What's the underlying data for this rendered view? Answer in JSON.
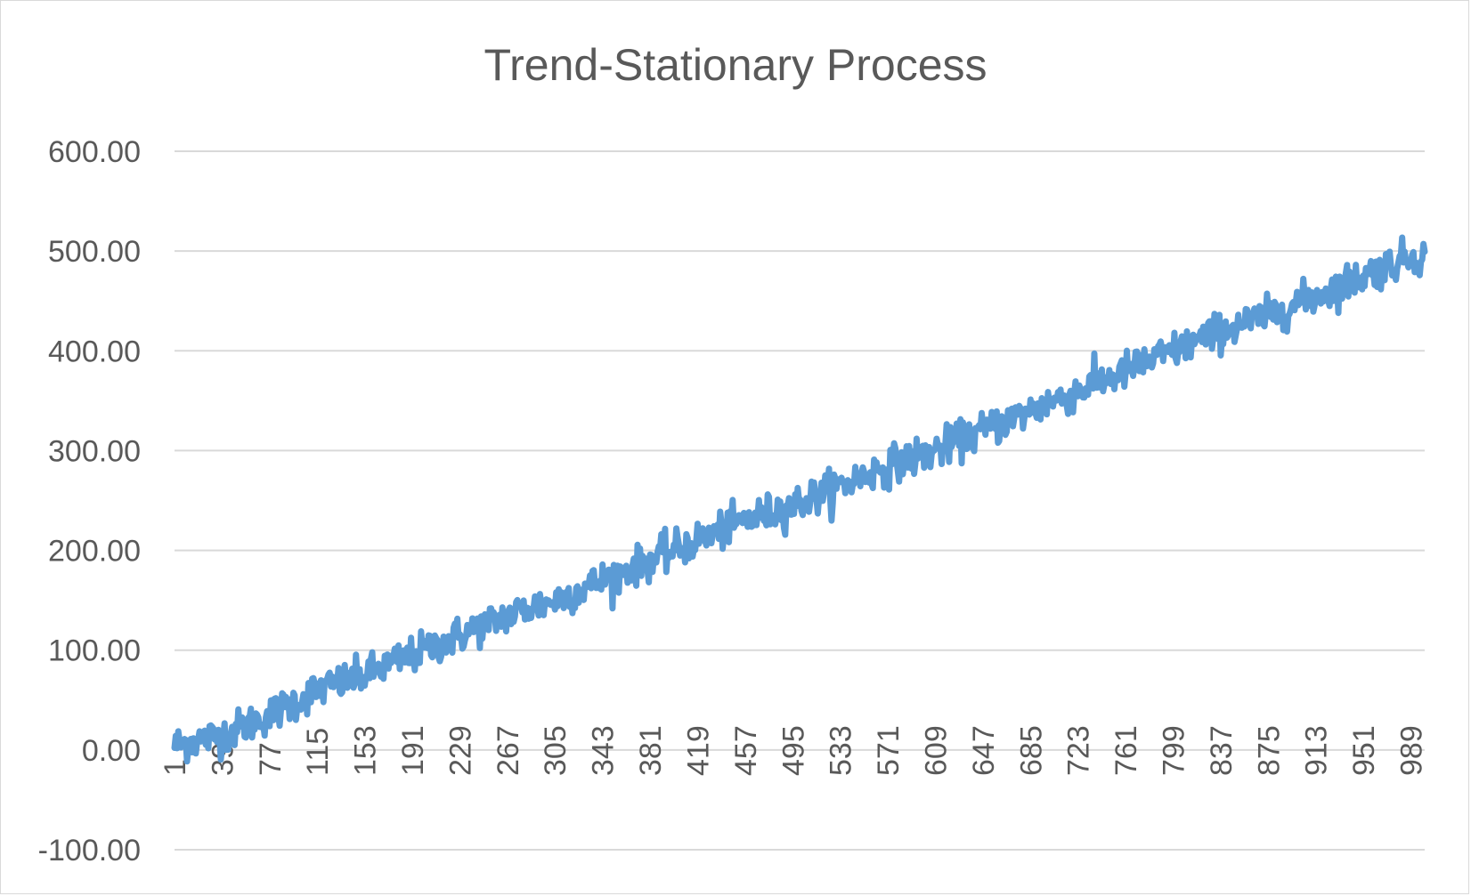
{
  "chart_data": {
    "type": "line",
    "title": "Trend-Stationary Process",
    "xlabel": "",
    "ylabel": "",
    "ylim": [
      -100,
      600
    ],
    "y_ticks": [
      600,
      500,
      400,
      300,
      200,
      100,
      0,
      -100
    ],
    "y_tick_labels": [
      "600.00",
      "500.00",
      "400.00",
      "300.00",
      "200.00",
      "100.00",
      "0.00",
      "-100.00"
    ],
    "x_range": [
      1,
      1000
    ],
    "x_tick_labels": [
      "1",
      "39",
      "77",
      "115",
      "153",
      "191",
      "229",
      "267",
      "305",
      "343",
      "381",
      "419",
      "457",
      "495",
      "533",
      "571",
      "609",
      "647",
      "685",
      "723",
      "761",
      "799",
      "837",
      "875",
      "913",
      "951",
      "989"
    ],
    "grid": true,
    "legend": "none",
    "series": [
      {
        "color": "#5b9bd5",
        "trend": {
          "intercept": 0,
          "slope": 0.5
        },
        "noise_amplitude": 15,
        "x": [
          1,
          39,
          77,
          115,
          153,
          191,
          229,
          267,
          305,
          343,
          381,
          419,
          457,
          495,
          533,
          571,
          609,
          647,
          685,
          723,
          761,
          799,
          837,
          875,
          913,
          951,
          989,
          1000
        ],
        "values": [
          5,
          15,
          35,
          60,
          75,
          95,
          115,
          135,
          150,
          170,
          190,
          210,
          230,
          245,
          265,
          285,
          300,
          320,
          340,
          360,
          380,
          400,
          420,
          435,
          455,
          475,
          495,
          495
        ]
      }
    ]
  }
}
